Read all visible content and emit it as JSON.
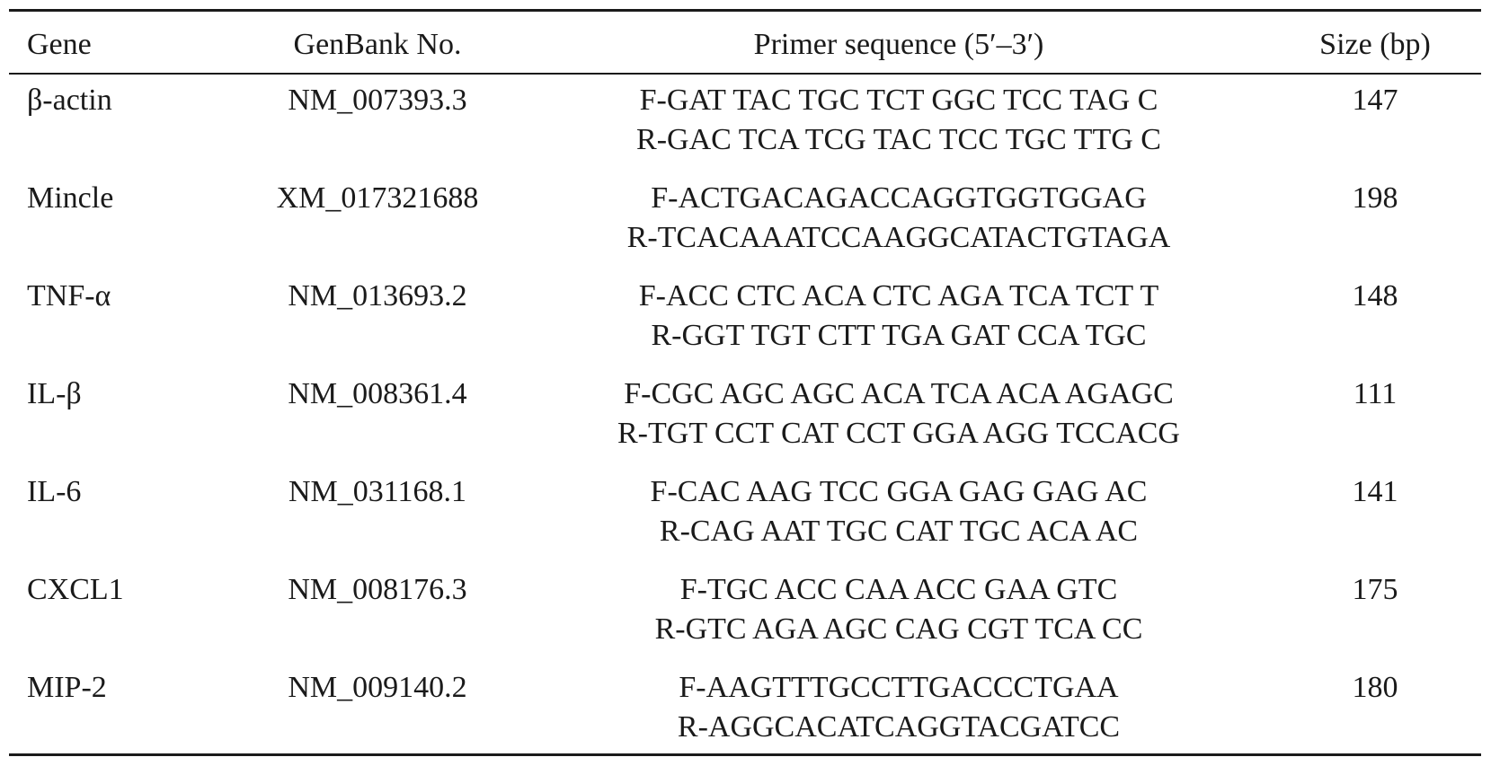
{
  "table": {
    "headers": {
      "gene": "Gene",
      "genbank": "GenBank No.",
      "primer": "Primer sequence (5′–3′)",
      "size": "Size (bp)"
    },
    "rows": [
      {
        "gene": "β-actin",
        "genbank": "NM_007393.3",
        "forward": "F-GAT TAC TGC TCT GGC TCC TAG C",
        "reverse": "R-GAC TCA TCG TAC TCC TGC TTG C",
        "size": "147"
      },
      {
        "gene": "Mincle",
        "genbank": "XM_017321688",
        "forward": "F-ACTGACAGACCAGGTGGTGGAG",
        "reverse": "R-TCACAAATCCAAGGCATACTGTAGA",
        "size": "198"
      },
      {
        "gene": "TNF-α",
        "genbank": "NM_013693.2",
        "forward": "F-ACC CTC ACA CTC AGA TCA TCT T",
        "reverse": "R-GGT TGT CTT TGA GAT CCA TGC",
        "size": "148"
      },
      {
        "gene": "IL-β",
        "genbank": "NM_008361.4",
        "forward": "F-CGC AGC AGC ACA TCA ACA AGAGC",
        "reverse": "R-TGT CCT CAT CCT GGA AGG TCCACG",
        "size": "111"
      },
      {
        "gene": "IL-6",
        "genbank": "NM_031168.1",
        "forward": "F-CAC AAG TCC GGA GAG GAG AC",
        "reverse": "R-CAG AAT TGC CAT TGC ACA AC",
        "size": "141"
      },
      {
        "gene": "CXCL1",
        "genbank": "NM_008176.3",
        "forward": "F-TGC ACC CAA ACC GAA GTC",
        "reverse": "R-GTC AGA AGC CAG CGT TCA CC",
        "size": "175"
      },
      {
        "gene": "MIP-2",
        "genbank": "NM_009140.2",
        "forward": "F-AAGTTTGCCTTGACCCTGAA",
        "reverse": "R-AGGCACATCAGGTACGATCC",
        "size": "180"
      }
    ]
  }
}
